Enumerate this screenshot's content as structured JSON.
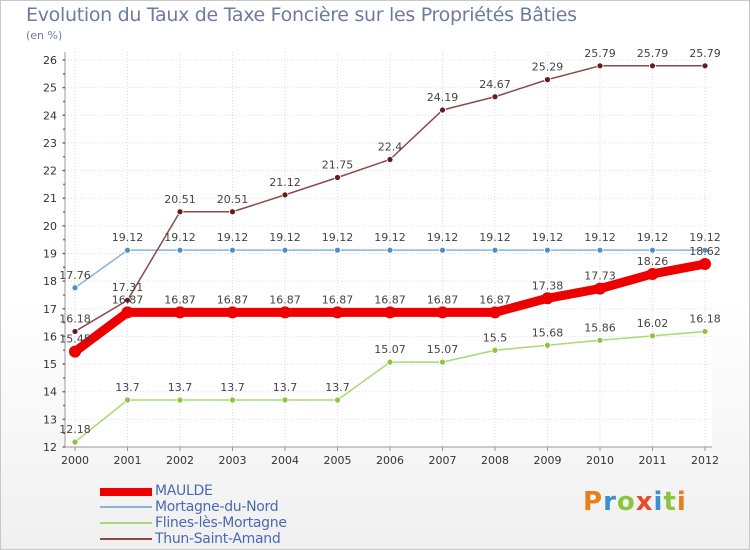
{
  "title": "Evolution du Taux de Taxe Foncière sur les Propriétés Bâties",
  "unit_label": "(en %)",
  "logo_text": "Proxiti",
  "logo_colors": [
    "#e8801a",
    "#3a8fd0",
    "#8cc63f",
    "#e84a2a",
    "#3a8fd0",
    "#8cc63f",
    "#e8801a"
  ],
  "chart_data": {
    "type": "line",
    "title": "Evolution du Taux de Taxe Foncière sur les Propriétés Bâties",
    "ylabel": "(en %)",
    "xlabel": "",
    "x": [
      "2000",
      "2001",
      "2002",
      "2003",
      "2004",
      "2005",
      "2006",
      "2007",
      "2008",
      "2009",
      "2010",
      "2011",
      "2012"
    ],
    "yticks": [
      12,
      13,
      14,
      15,
      16,
      17,
      18,
      19,
      20,
      21,
      22,
      23,
      24,
      25,
      26
    ],
    "ylim": [
      12,
      26
    ],
    "grid": true,
    "series": [
      {
        "name": "Flines-lès-Mortagne",
        "color": "#a8d878",
        "marker": "#8cc63f",
        "weight": "thin",
        "values": [
          12.18,
          13.7,
          13.7,
          13.7,
          13.7,
          13.7,
          15.07,
          15.07,
          15.5,
          15.68,
          15.86,
          16.02,
          16.18
        ],
        "labels": [
          "12.18",
          "13.7",
          "13.7",
          "13.7",
          "13.7",
          "13.7",
          "15.07",
          "15.07",
          "15.5",
          "15.68",
          "15.86",
          "16.02",
          "16.18"
        ]
      },
      {
        "name": "Mortagne-du-Nord",
        "color": "#88b4dc",
        "marker": "#4a90c8",
        "weight": "thin",
        "values": [
          17.76,
          19.12,
          19.12,
          19.12,
          19.12,
          19.12,
          19.12,
          19.12,
          19.12,
          19.12,
          19.12,
          19.12,
          19.12
        ],
        "labels": [
          "17.76",
          "19.12",
          "19.12",
          "19.12",
          "19.12",
          "19.12",
          "19.12",
          "19.12",
          "19.12",
          "19.12",
          "19.12",
          "19.12",
          "19.12"
        ]
      },
      {
        "name": "Thun-Saint-Amand",
        "color": "#8a4a4a",
        "marker": "#6a1a1a",
        "weight": "thin",
        "values": [
          16.18,
          17.31,
          20.51,
          20.51,
          21.12,
          21.75,
          22.4,
          24.19,
          24.67,
          25.29,
          25.79,
          25.79,
          25.79
        ],
        "labels": [
          "16.18",
          "17.31",
          "20.51",
          "20.51",
          "21.12",
          "21.75",
          "22.4",
          "24.19",
          "24.67",
          "25.29",
          "25.79",
          "25.79",
          "25.79"
        ]
      },
      {
        "name": "MAULDE",
        "color": "#ee0000",
        "marker": "#ee0000",
        "weight": "thick",
        "values": [
          15.45,
          16.87,
          16.87,
          16.87,
          16.87,
          16.87,
          16.87,
          16.87,
          16.87,
          17.38,
          17.73,
          18.26,
          18.62
        ],
        "labels": [
          "15.45",
          "16.87",
          "16.87",
          "16.87",
          "16.87",
          "16.87",
          "16.87",
          "16.87",
          "16.87",
          "17.38",
          "17.73",
          "18.26",
          "18.62"
        ]
      }
    ],
    "legend": [
      "MAULDE",
      "Mortagne-du-Nord",
      "Flines-lès-Mortagne",
      "Thun-Saint-Amand"
    ],
    "legend_position": "bottom-left"
  }
}
